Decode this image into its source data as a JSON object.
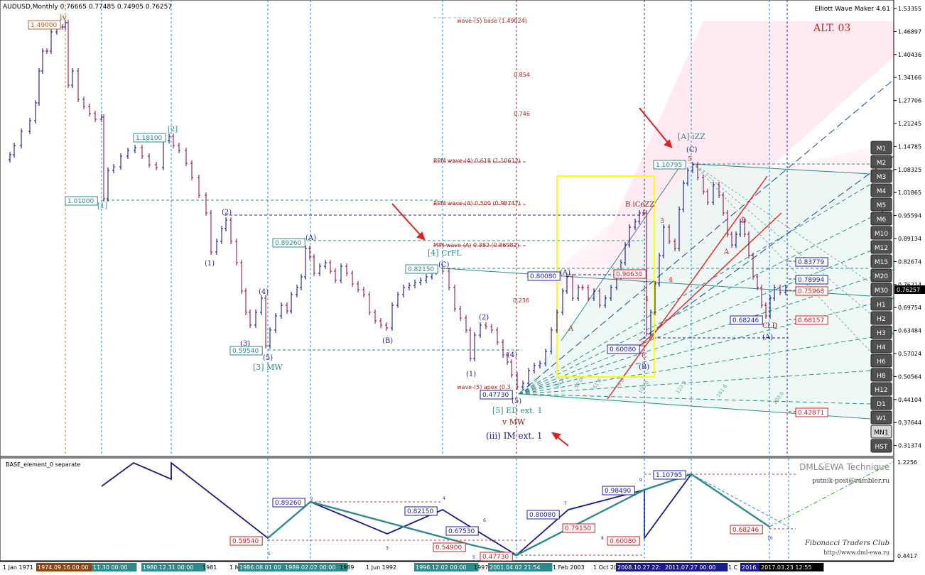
{
  "header": {
    "symbol_info": "AUDUSD,Monthly  0.76665 0.77485 0.74905 0.76257",
    "indicator_name": "Elliott Wave Maker 4.61",
    "alt_label": "ALT. 03"
  },
  "subwindow": {
    "title": "BASE_element_0 separate",
    "brand": "DML&EWA Technique",
    "email": "putnik-post@rambler.ru",
    "club": "Fibonacci Traders Club",
    "url": "http://www.dml-ewa.ru",
    "scale_top": "1.2256",
    "scale_bottom": "0.4417"
  },
  "price_axis": {
    "ticks": [
      "1.53355",
      "1.46897",
      "1.40436",
      "1.34166",
      "1.27706",
      "1.21245",
      "1.14785",
      "1.08325",
      "1.01865",
      "0.95594",
      "0.89134",
      "0.82674",
      "0.76214",
      "0.69754",
      "0.63484",
      "0.57024",
      "0.50564",
      "0.44104",
      "0.37644",
      "0.31374"
    ],
    "current_price": "0.76257"
  },
  "timeframes": {
    "items": [
      "M1",
      "M2",
      "M3",
      "M4",
      "M5",
      "M6",
      "M10",
      "M12",
      "M15",
      "M20",
      "M30",
      "H1",
      "H2",
      "H3",
      "H4",
      "H6",
      "H8",
      "H12",
      "D1",
      "W1",
      "MN1",
      "HST"
    ],
    "active": "MN1"
  },
  "time_axis": {
    "labels": [
      "1 Jan 1971",
      "1974.09.16 00:00",
      "11.30 00:00",
      "1980.12.31 00:00",
      "1981",
      "1 M",
      "1986.08.01 00",
      "1989.02.02 00:00",
      "1989",
      "1 Jun 1992",
      "1996.12.02 00:00",
      "1997",
      "2001.04.02 21:54",
      "1 Feb 2003",
      "1 Oct 20",
      "2008.10.27 22:",
      "2011.07.27 00:00",
      "1 C",
      "2016.",
      "2017.03.23 12:55"
    ]
  },
  "price_labels": [
    "1.49000",
    "1.18100",
    "1.01000",
    "0.89260",
    "0.59540",
    "0.82150",
    "0.47730",
    "0.80080",
    "0.60080",
    "0.90630",
    "1.10795",
    "0.68246",
    "0.83779",
    "0.78994",
    "0.75968",
    "0.68157",
    "0.42871"
  ],
  "fib_labels": [
    "wave-(5) base (1.49024)",
    "0.854",
    "0.746",
    "RPM wave-(A)  0.618 (1.10612)",
    "RPM wave-(A)  0.500 (0.98747)",
    "MIN wave-(A)  0.382 (0.86982)",
    "0.236",
    "wave-(5) apex (0.3"
  ],
  "wave_labels": [
    "iv",
    "[2]",
    "[1]",
    "(2)",
    "(1)",
    "(A)",
    "(4)",
    "(3)",
    "(5)",
    "[3] MW",
    "(B)",
    "[4] CrFL",
    "(C)",
    "(2)",
    "(1)",
    "(4)",
    "(5)",
    "[5] ED ext. 1",
    "v MW",
    "(iii) IM ext. 1",
    "A",
    "(A)",
    "B iCeZZ",
    "1",
    "2",
    "3",
    "4",
    "5",
    "C",
    "(B)",
    "[A] iZZ",
    "(C)",
    "A",
    "B",
    "C",
    "LD",
    "(A)"
  ],
  "fan_labels": [
    "23.6",
    "38.2",
    "50.0",
    "61.8",
    "78.6",
    "100.0",
    "127.2",
    "161.8",
    "200.0"
  ],
  "sub_labels": [
    "0.89260",
    "0.82150",
    "0.59540",
    "0.67530",
    "0.54900",
    "0.47730",
    "0.80080",
    "0.79150",
    "0.60080",
    "0.98490",
    "1.10795",
    "0.68246"
  ],
  "sub_small": [
    "1",
    "2",
    "3",
    "4",
    "5",
    "6",
    "7",
    "8",
    "9",
    "10"
  ],
  "colors": {
    "bull": "#00008b",
    "bear": "#8b0040",
    "wave_blue": "#00008b",
    "teal": "#2e8b8b",
    "red_label": "#cc0000",
    "sidebar_bg": "#505050"
  }
}
